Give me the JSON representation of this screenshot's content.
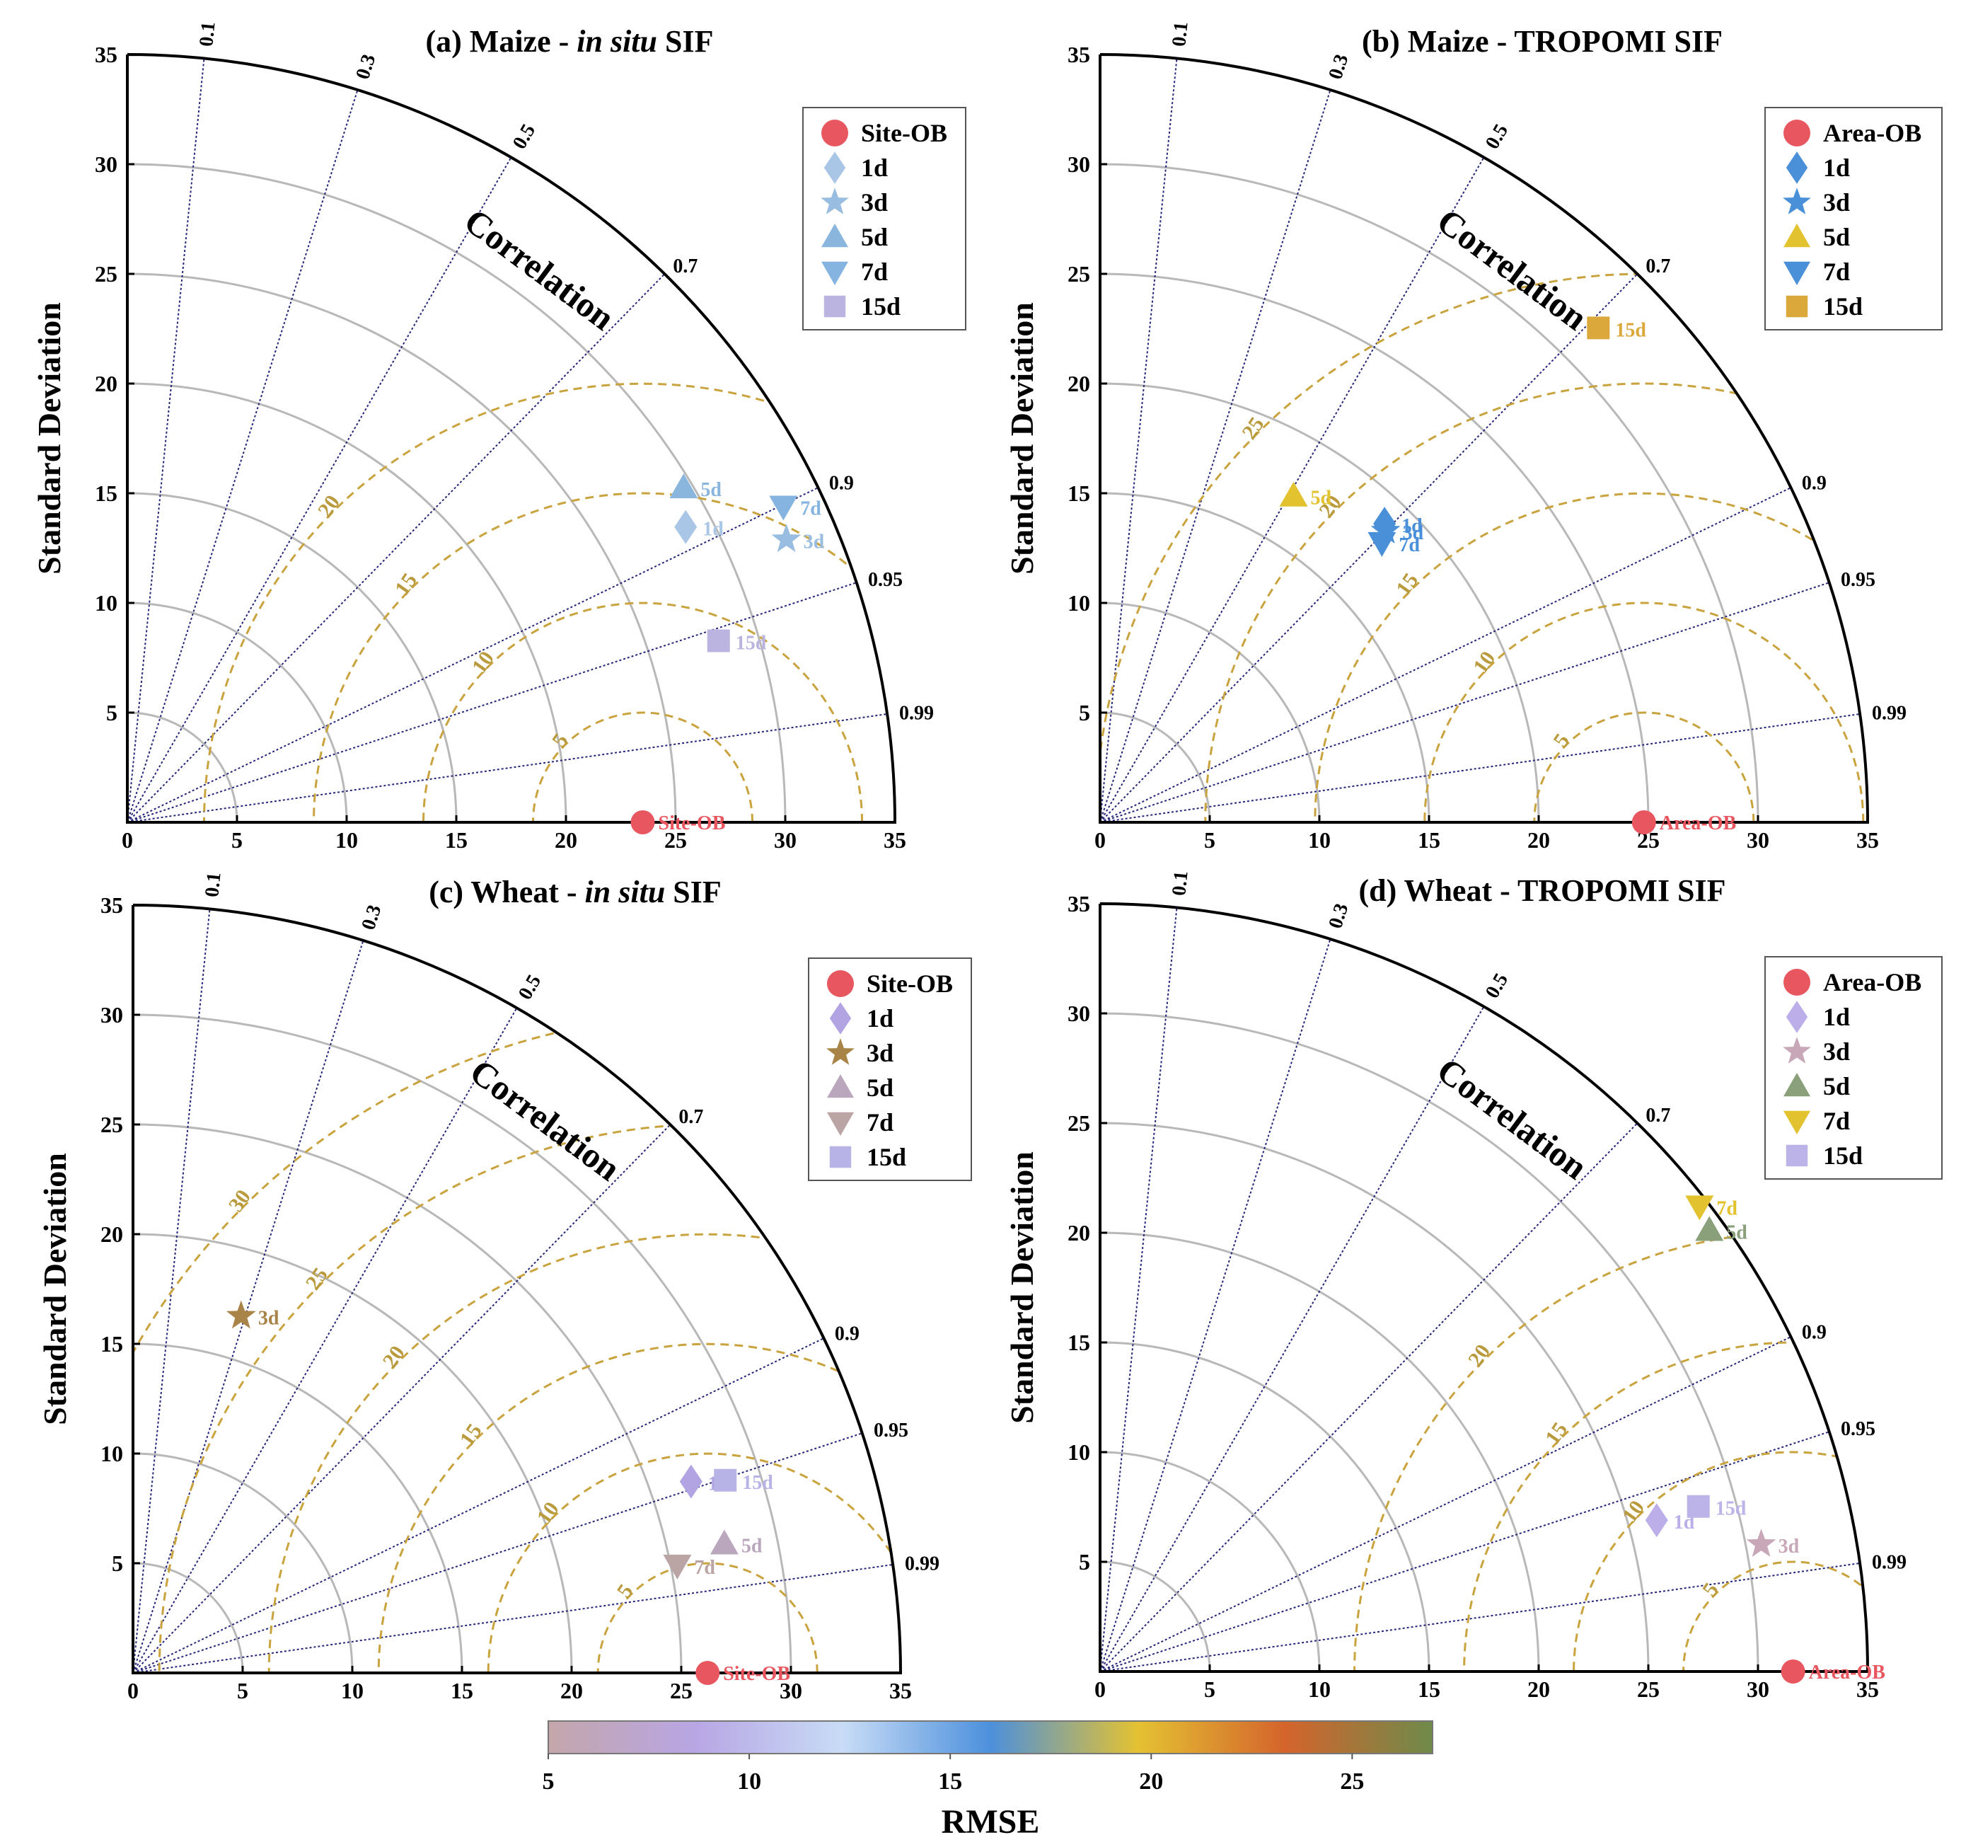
{
  "chart_data": [
    {
      "type": "scatter",
      "subtype": "taylor_diagram",
      "title": "(a) Maize - in situ SIF",
      "title_parts": [
        "(a) Maize - ",
        "in situ",
        " SIF"
      ],
      "ylabel": "Standard Deviation",
      "correlation_label": "Correlation",
      "std_range": [
        0,
        35
      ],
      "std_ticks": [
        "0",
        "5",
        "10",
        "15",
        "20",
        "25",
        "30",
        "35"
      ],
      "correlation_ticks": [
        "0.1",
        "0.3",
        "0.5",
        "0.7",
        "0.9",
        "0.95",
        "0.99"
      ],
      "rmse_contours": [
        "5",
        "10",
        "15",
        "20"
      ],
      "reference": {
        "name": "Site-OB",
        "std": 23.5,
        "color": "#e8575f"
      },
      "legend": [
        "Site-OB",
        "1d",
        "3d",
        "5d",
        "7d",
        "15d"
      ],
      "legend_position": "top-right",
      "points": [
        {
          "name": "1d",
          "std": 28.8,
          "corr": 0.884,
          "marker": "diamond",
          "color": "#a9c6e6"
        },
        {
          "name": "3d",
          "std": 32.7,
          "corr": 0.919,
          "marker": "star",
          "color": "#99bde0"
        },
        {
          "name": "5d",
          "std": 29.6,
          "corr": 0.857,
          "marker": "triangle-up",
          "color": "#8ab6de"
        },
        {
          "name": "7d",
          "std": 33.2,
          "corr": 0.901,
          "marker": "triangle-down",
          "color": "#86b4e0"
        },
        {
          "name": "15d",
          "std": 28.2,
          "corr": 0.956,
          "marker": "square",
          "color": "#bcb4e0"
        }
      ]
    },
    {
      "type": "scatter",
      "subtype": "taylor_diagram",
      "title": "(b) Maize - TROPOMI SIF",
      "title_parts": [
        "(b) Maize - TROPOMI SIF"
      ],
      "ylabel": "Standard Deviation",
      "correlation_label": "Correlation",
      "std_range": [
        0,
        35
      ],
      "std_ticks": [
        "0",
        "5",
        "10",
        "15",
        "20",
        "25",
        "30",
        "35"
      ],
      "correlation_ticks": [
        "0.1",
        "0.3",
        "0.5",
        "0.7",
        "0.9",
        "0.95",
        "0.99"
      ],
      "rmse_contours": [
        "5",
        "10",
        "15",
        "20",
        "25"
      ],
      "reference": {
        "name": "Area-OB",
        "std": 24.8,
        "color": "#e8575f"
      },
      "legend": [
        "Area-OB",
        "1d",
        "3d",
        "5d",
        "7d",
        "15d"
      ],
      "legend_position": "top-right",
      "points": [
        {
          "name": "1d",
          "std": 18.8,
          "corr": 0.69,
          "marker": "diamond",
          "color": "#4a90d9"
        },
        {
          "name": "3d",
          "std": 18.6,
          "corr": 0.7,
          "marker": "star",
          "color": "#4a90d9"
        },
        {
          "name": "5d",
          "std": 17.3,
          "corr": 0.51,
          "marker": "triangle-up",
          "color": "#e2c22f"
        },
        {
          "name": "7d",
          "std": 18.1,
          "corr": 0.71,
          "marker": "triangle-down",
          "color": "#4a90d9"
        },
        {
          "name": "15d",
          "std": 32.0,
          "corr": 0.71,
          "marker": "square",
          "color": "#dba93b"
        }
      ]
    },
    {
      "type": "scatter",
      "subtype": "taylor_diagram",
      "title": "(c) Wheat - in situ SIF",
      "title_parts": [
        "(c) Wheat - ",
        "in situ",
        " SIF"
      ],
      "ylabel": "Standard Deviation",
      "correlation_label": "Correlation",
      "std_range": [
        0,
        35
      ],
      "std_ticks": [
        "0",
        "5",
        "10",
        "15",
        "20",
        "25",
        "30",
        "35"
      ],
      "correlation_ticks": [
        "0.1",
        "0.3",
        "0.5",
        "0.7",
        "0.9",
        "0.95",
        "0.99"
      ],
      "rmse_contours": [
        "5",
        "10",
        "15",
        "20",
        "25",
        "30"
      ],
      "reference": {
        "name": "Site-OB",
        "std": 26.2,
        "color": "#e8575f"
      },
      "legend": [
        "Site-OB",
        "1d",
        "3d",
        "5d",
        "7d",
        "15d"
      ],
      "legend_position": "top-right",
      "points": [
        {
          "name": "1d",
          "std": 26.9,
          "corr": 0.946,
          "marker": "diamond",
          "color": "#b2a4e3"
        },
        {
          "name": "3d",
          "std": 17.0,
          "corr": 0.29,
          "marker": "star",
          "color": "#a88448"
        },
        {
          "name": "5d",
          "std": 27.6,
          "corr": 0.977,
          "marker": "triangle-up",
          "color": "#bba7bd"
        },
        {
          "name": "7d",
          "std": 25.3,
          "corr": 0.981,
          "marker": "triangle-down",
          "color": "#bba4a4"
        },
        {
          "name": "15d",
          "std": 28.4,
          "corr": 0.951,
          "marker": "square",
          "color": "#b7b3e6"
        }
      ]
    },
    {
      "type": "scatter",
      "subtype": "taylor_diagram",
      "title": "(d) Wheat - TROPOMI SIF",
      "title_parts": [
        "(d) Wheat - TROPOMI SIF"
      ],
      "ylabel": "Standard Deviation",
      "correlation_label": "Correlation",
      "std_range": [
        0,
        35
      ],
      "std_ticks": [
        "0",
        "5",
        "10",
        "15",
        "20",
        "25",
        "30",
        "35"
      ],
      "correlation_ticks": [
        "0.1",
        "0.3",
        "0.5",
        "0.7",
        "0.9",
        "0.95",
        "0.99"
      ],
      "rmse_contours": [
        "5",
        "10",
        "15",
        "20"
      ],
      "reference": {
        "name": "Area-OB",
        "std": 31.6,
        "color": "#e8575f"
      },
      "legend": [
        "Area-OB",
        "1d",
        "3d",
        "5d",
        "7d",
        "15d"
      ],
      "legend_position": "top-right",
      "points": [
        {
          "name": "1d",
          "std": 26.3,
          "corr": 0.965,
          "marker": "diamond",
          "color": "#bcaee8"
        },
        {
          "name": "3d",
          "std": 30.7,
          "corr": 0.982,
          "marker": "star",
          "color": "#c8a8b8"
        },
        {
          "name": "5d",
          "std": 34.3,
          "corr": 0.81,
          "marker": "triangle-up",
          "color": "#8aa07a"
        },
        {
          "name": "7d",
          "std": 34.6,
          "corr": 0.79,
          "marker": "triangle-down",
          "color": "#e2c22f"
        },
        {
          "name": "15d",
          "std": 28.3,
          "corr": 0.964,
          "marker": "square",
          "color": "#bcb4e8"
        }
      ]
    }
  ],
  "colorbar": {
    "title": "RMSE",
    "range": [
      5,
      27
    ],
    "ticks": [
      "5",
      "10",
      "15",
      "20",
      "25"
    ],
    "colors": [
      "#c4a6aa",
      "#b8a6e4",
      "#c8dcf6",
      "#4c90dc",
      "#e4c232",
      "#d4642c",
      "#6e8a4a"
    ]
  }
}
